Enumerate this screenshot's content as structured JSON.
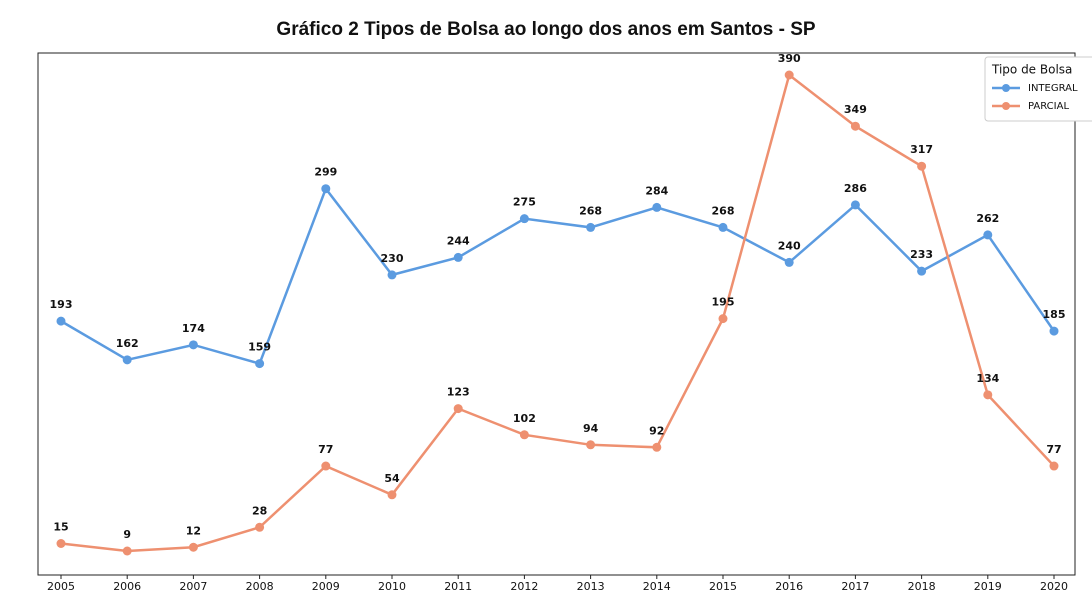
{
  "chart_data": {
    "type": "line",
    "title": "Gráfico 2 Tipos de Bolsa ao longo dos anos em Santos - SP",
    "categories": [
      "2005",
      "2006",
      "2007",
      "2008",
      "2009",
      "2010",
      "2011",
      "2012",
      "2013",
      "2014",
      "2015",
      "2016",
      "2017",
      "2018",
      "2019",
      "2020"
    ],
    "legend_title": "Tipo de Bolsa",
    "legend": "upper right",
    "series": [
      {
        "name": "INTEGRAL",
        "color": "#5b9be0",
        "values": [
          193,
          162,
          174,
          159,
          299,
          230,
          244,
          275,
          268,
          284,
          268,
          240,
          286,
          233,
          262,
          185
        ]
      },
      {
        "name": "PARCIAL",
        "color": "#ee9070",
        "values": [
          15,
          9,
          12,
          28,
          77,
          54,
          123,
          102,
          94,
          92,
          195,
          390,
          349,
          317,
          134,
          77
        ]
      }
    ]
  }
}
